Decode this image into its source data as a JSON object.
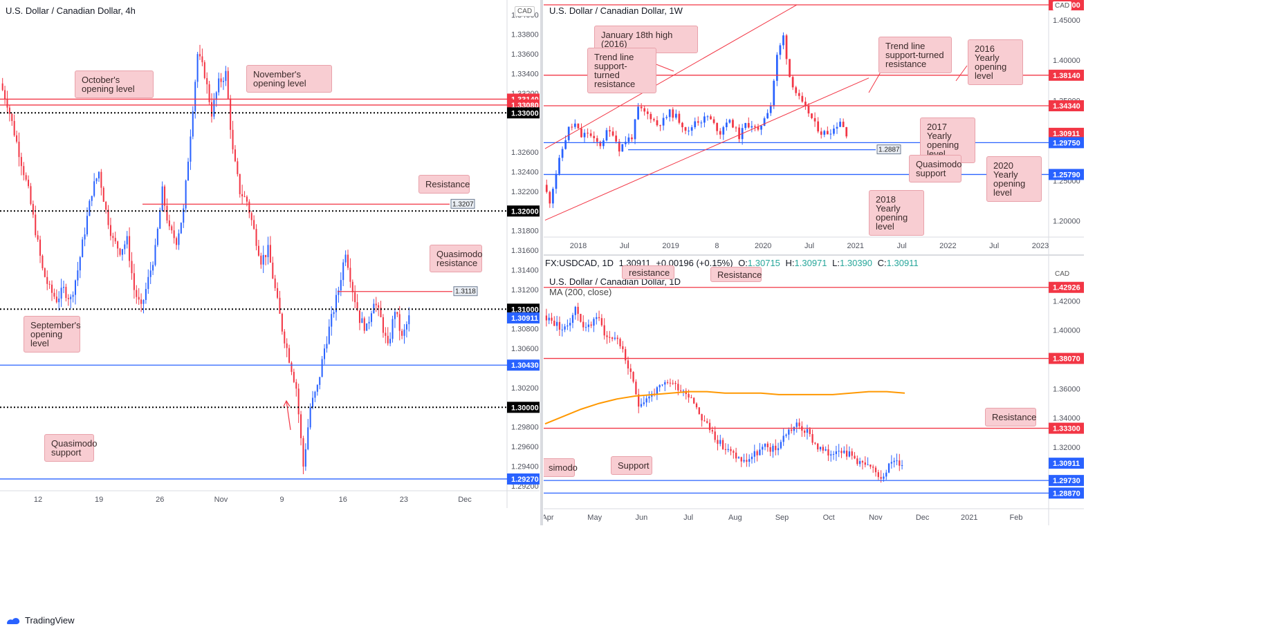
{
  "chart_data": [
    {
      "id": "h4",
      "type": "candlestick",
      "title": "U.S. Dollar / Canadian Dollar, 4h",
      "currency_tag": "CAD",
      "ylim": [
        1.2915,
        1.3415
      ],
      "y_ticks": [
        "1.34000",
        "1.33800",
        "1.33600",
        "1.33400",
        "1.33200",
        "1.32600",
        "1.32400",
        "1.32200",
        "1.31800",
        "1.31600",
        "1.31400",
        "1.31200",
        "1.30800",
        "1.30600",
        "1.30200",
        "1.29800",
        "1.29600",
        "1.29400",
        "1.29200"
      ],
      "x_ticks": [
        "12",
        "19",
        "26",
        "Nov",
        "9",
        "16",
        "23",
        "Dec"
      ],
      "price_path": [
        1.333,
        1.331,
        1.328,
        1.325,
        1.322,
        1.318,
        1.314,
        1.312,
        1.311,
        1.312,
        1.311,
        1.314,
        1.318,
        1.322,
        1.324,
        1.32,
        1.317,
        1.316,
        1.317,
        1.312,
        1.31,
        1.313,
        1.316,
        1.322,
        1.318,
        1.317,
        1.32,
        1.328,
        1.336,
        1.334,
        1.33,
        1.333,
        1.334,
        1.326,
        1.322,
        1.321,
        1.318,
        1.315,
        1.316,
        1.312,
        1.308,
        1.305,
        1.302,
        1.294,
        1.3,
        1.302,
        1.306,
        1.309,
        1.312,
        1.316,
        1.312,
        1.309,
        1.308,
        1.311,
        1.309,
        1.306,
        1.31,
        1.307,
        1.3091
      ],
      "levels": [
        {
          "price": 1.3314,
          "label": "1.33140",
          "kind": "red-line",
          "color": "#f23645"
        },
        {
          "price": 1.3308,
          "label": "1.33080",
          "kind": "red-line",
          "color": "#f23645"
        },
        {
          "price": 1.33,
          "label": "1.33000",
          "kind": "dotted",
          "color": "#000000"
        },
        {
          "price": 1.3207,
          "label": "1.3207",
          "kind": "red-tag",
          "color": "#f23645"
        },
        {
          "price": 1.32,
          "label": "1.32000",
          "kind": "dotted",
          "color": "#000000"
        },
        {
          "price": 1.3118,
          "label": "1.3118",
          "kind": "red-tag",
          "color": "#f23645"
        },
        {
          "price": 1.31,
          "label": "1.31000",
          "kind": "dotted",
          "color": "#000000"
        },
        {
          "price": 1.30911,
          "label": "1.30911",
          "kind": "price",
          "color": "#2962ff"
        },
        {
          "price": 1.3043,
          "label": "1.30430",
          "kind": "blue-line",
          "color": "#2962ff"
        },
        {
          "price": 1.3,
          "label": "1.30000",
          "kind": "dotted",
          "color": "#000000"
        },
        {
          "price": 1.2927,
          "label": "1.29270",
          "kind": "blue-line",
          "color": "#2962ff"
        }
      ],
      "annotations": [
        "October's opening level",
        "November's opening level",
        "Resistance",
        "Quasimodo resistance",
        "September's opening level",
        "Quasimodo support"
      ]
    },
    {
      "id": "w1",
      "type": "candlestick",
      "title": "U.S. Dollar / Canadian Dollar, 1W",
      "currency_tag": "CAD",
      "ylim": [
        1.18,
        1.475
      ],
      "y_ticks": [
        "1.45000",
        "1.40000",
        "1.35000",
        "1.25000",
        "1.20000"
      ],
      "x_ticks": [
        "2018",
        "Jul",
        "2019",
        "8",
        "2020",
        "Jul",
        "2021",
        "Jul",
        "2022",
        "Jul",
        "2023"
      ],
      "price_path": [
        1.245,
        1.225,
        1.26,
        1.29,
        1.315,
        1.32,
        1.305,
        1.31,
        1.3,
        1.295,
        1.31,
        1.31,
        1.29,
        1.3,
        1.305,
        1.34,
        1.335,
        1.33,
        1.32,
        1.325,
        1.335,
        1.33,
        1.32,
        1.31,
        1.325,
        1.325,
        1.33,
        1.32,
        1.31,
        1.325,
        1.32,
        1.305,
        1.32,
        1.32,
        1.31,
        1.33,
        1.345,
        1.405,
        1.43,
        1.38,
        1.36,
        1.345,
        1.335,
        1.32,
        1.31,
        1.31,
        1.315,
        1.325,
        1.3091
      ],
      "levels": [
        {
          "price": 1.469,
          "label": "1.46900",
          "kind": "red-line",
          "color": "#f23645"
        },
        {
          "price": 1.3814,
          "label": "1.38140",
          "kind": "red-line",
          "color": "#f23645"
        },
        {
          "price": 1.3434,
          "label": "1.34340",
          "kind": "red-line",
          "color": "#f23645"
        },
        {
          "price": 1.30911,
          "label": "1.30911",
          "kind": "price",
          "color": "#f23645"
        },
        {
          "price": 1.2975,
          "label": "1.29750",
          "kind": "blue-line",
          "color": "#2962ff"
        },
        {
          "price": 1.2887,
          "label": "1.2887",
          "kind": "blue-tag",
          "color": "#2962ff"
        },
        {
          "price": 1.2579,
          "label": "1.25790",
          "kind": "blue-line",
          "color": "#2962ff"
        }
      ],
      "annotations": [
        "January 18th high (2016)",
        "Trend line support-turned resistance",
        "Trend line support-turned resistance",
        "2016 Yearly opening level",
        "2017 Yearly opening level",
        "Quasimodo support",
        "2020 Yearly opening level",
        "2018 Yearly opening level"
      ]
    },
    {
      "id": "d1",
      "type": "candlestick",
      "title": "U.S. Dollar / Canadian Dollar, 1D",
      "currency_tag": "CAD",
      "ylim": [
        1.278,
        1.44
      ],
      "y_ticks": [
        "1.42000",
        "1.40000",
        "1.36000",
        "1.34000",
        "1.32000"
      ],
      "x_ticks": [
        "Apr",
        "May",
        "Jun",
        "Jul",
        "Aug",
        "Sep",
        "Oct",
        "Nov",
        "Dec",
        "2021",
        "Feb"
      ],
      "indicator": "MA (200, close)",
      "ma_path": [
        1.336,
        1.341,
        1.346,
        1.35,
        1.353,
        1.355,
        1.356,
        1.357,
        1.358,
        1.358,
        1.357,
        1.357,
        1.357,
        1.356,
        1.356,
        1.356,
        1.356,
        1.357,
        1.358,
        1.358,
        1.357
      ],
      "price_path": [
        1.41,
        1.405,
        1.4,
        1.415,
        1.4,
        1.41,
        1.395,
        1.395,
        1.375,
        1.35,
        1.355,
        1.36,
        1.365,
        1.36,
        1.355,
        1.34,
        1.33,
        1.32,
        1.315,
        1.31,
        1.315,
        1.32,
        1.318,
        1.33,
        1.335,
        1.33,
        1.32,
        1.315,
        1.32,
        1.315,
        1.31,
        1.305,
        1.3,
        1.31,
        1.3091
      ],
      "levels": [
        {
          "price": 1.42926,
          "label": "1.42926",
          "kind": "red-line",
          "color": "#f23645"
        },
        {
          "price": 1.3807,
          "label": "1.38070",
          "kind": "red-line",
          "color": "#f23645"
        },
        {
          "price": 1.333,
          "label": "1.33300",
          "kind": "red-line",
          "color": "#f23645"
        },
        {
          "price": 1.30911,
          "label": "1.30911",
          "kind": "price",
          "color": "#2962ff"
        },
        {
          "price": 1.2973,
          "label": "1.29730",
          "kind": "blue-line",
          "color": "#2962ff"
        },
        {
          "price": 1.2887,
          "label": "1.28870",
          "kind": "blue-line",
          "color": "#2962ff"
        }
      ],
      "annotations": [
        "resistance",
        "Resistance",
        "Resistance",
        "Support",
        "simodo"
      ]
    }
  ],
  "daily_legend": {
    "symbol": "FX:USDCAD, 1D",
    "price": "1.30911",
    "change": "+0.00196 (+0.15%)",
    "o_label": "O:",
    "o": "1.30715",
    "h_label": "H:",
    "h": "1.30971",
    "l_label": "L:",
    "l": "1.30390",
    "c_label": "C:",
    "c": "1.30911"
  },
  "notes": {
    "h4_oct": "October's opening level",
    "h4_nov": "November's opening level",
    "h4_res": "Resistance",
    "h4_qmr": "Quasimodo resistance",
    "h4_sep": "September's opening level",
    "h4_qms": "Quasimodo support",
    "w_jan": "January 18th high (2016)",
    "w_tl1": "Trend line support-turned resistance",
    "w_tl2": "Trend line support-turned resistance",
    "w_2016": "2016 Yearly opening level",
    "w_2017": "2017 Yearly opening level",
    "w_qms": "Quasimodo support",
    "w_2020": "2020 Yearly opening level",
    "w_2018": "2018 Yearly opening level",
    "d_res_top": "resistance",
    "d_res2": "Resistance",
    "d_res3": "Resistance",
    "d_sup": "Support",
    "d_qm": "simodo"
  },
  "branding": {
    "logo_text": "TradingView"
  },
  "colors": {
    "up": "#2962ff",
    "down": "#f23645",
    "ma": "#ff9800",
    "tag_bg": "#f8cdd2"
  }
}
